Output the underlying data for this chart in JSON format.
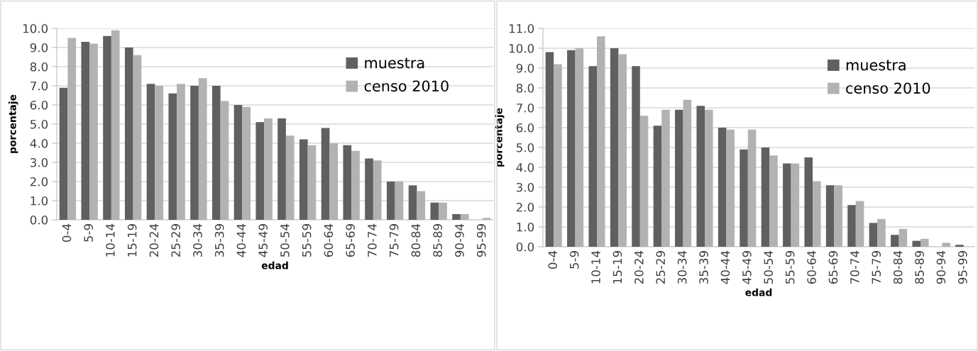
{
  "chart_data": [
    {
      "type": "bar",
      "xlabel": "edad",
      "ylabel": "porcentaje",
      "categories": [
        "0-4",
        "5-9",
        "10-14",
        "15-19",
        "20-24",
        "25-29",
        "30-34",
        "35-39",
        "40-44",
        "45-49",
        "50-54",
        "55-59",
        "60-64",
        "65-69",
        "70-74",
        "75-79",
        "80-84",
        "85-89",
        "90-94",
        "95-99"
      ],
      "series": [
        {
          "name": "muestra",
          "color": "#606060",
          "values": [
            6.9,
            9.3,
            9.6,
            9.0,
            7.1,
            6.6,
            7.0,
            7.0,
            6.0,
            5.1,
            5.3,
            4.2,
            4.8,
            3.9,
            3.2,
            2.0,
            1.8,
            0.9,
            0.3,
            0.0
          ]
        },
        {
          "name": "censo 2010",
          "color": "#b2b2b2",
          "values": [
            9.5,
            9.2,
            9.9,
            8.6,
            7.0,
            7.1,
            7.4,
            6.2,
            5.9,
            5.3,
            4.4,
            3.9,
            4.0,
            3.6,
            3.1,
            2.0,
            1.5,
            0.9,
            0.3,
            0.1
          ]
        }
      ],
      "ylim": [
        0,
        10
      ],
      "yticks": [
        {
          "value": 0,
          "label": "0.0"
        },
        {
          "value": 1,
          "label": "1.0"
        },
        {
          "value": 2,
          "label": "2.0"
        },
        {
          "value": 3,
          "label": "3.0"
        },
        {
          "value": 4,
          "label": "4.0"
        },
        {
          "value": 5,
          "label": "5.0"
        },
        {
          "value": 6,
          "label": "6.0"
        },
        {
          "value": 7,
          "label": "7.0"
        },
        {
          "value": 8,
          "label": "8.0"
        },
        {
          "value": 9,
          "label": "9.0"
        },
        {
          "value": 10,
          "label": "10.0"
        }
      ],
      "grid": "y",
      "legend": "top right"
    },
    {
      "type": "bar",
      "xlabel": "edad",
      "ylabel": "porcentaje",
      "categories": [
        "0-4",
        "5-9",
        "10-14",
        "15-19",
        "20-24",
        "25-29",
        "30-34",
        "35-39",
        "40-44",
        "45-49",
        "50-54",
        "55-59",
        "60-64",
        "65-69",
        "70-74",
        "75-79",
        "80-84",
        "85-89",
        "90-94",
        "95-99"
      ],
      "series": [
        {
          "name": "muestra",
          "color": "#606060",
          "values": [
            9.8,
            9.9,
            9.1,
            10.0,
            9.1,
            6.1,
            6.9,
            7.1,
            6.0,
            4.9,
            5.0,
            4.2,
            4.5,
            3.1,
            2.1,
            1.2,
            0.6,
            0.3,
            0.0,
            0.1
          ]
        },
        {
          "name": "censo 2010",
          "color": "#b2b2b2",
          "values": [
            9.2,
            10.0,
            10.6,
            9.7,
            6.6,
            6.9,
            7.4,
            6.9,
            5.9,
            5.9,
            4.6,
            4.2,
            3.3,
            3.1,
            2.3,
            1.4,
            0.9,
            0.4,
            0.2,
            0.0
          ]
        }
      ],
      "ylim": [
        0,
        11
      ],
      "yticks": [
        {
          "value": 0,
          "label": "0.0"
        },
        {
          "value": 1,
          "label": "1.0"
        },
        {
          "value": 2,
          "label": "2.0"
        },
        {
          "value": 3,
          "label": "3.0"
        },
        {
          "value": 4,
          "label": "4.0"
        },
        {
          "value": 5,
          "label": "5.0"
        },
        {
          "value": 6,
          "label": "6.0"
        },
        {
          "value": 7,
          "label": "7.0"
        },
        {
          "value": 8,
          "label": "8.0"
        },
        {
          "value": 9,
          "label": "9.0"
        },
        {
          "value": 10,
          "label": "10.0"
        },
        {
          "value": 11,
          "label": "11.0"
        }
      ],
      "grid": "y",
      "legend": "top right"
    }
  ]
}
